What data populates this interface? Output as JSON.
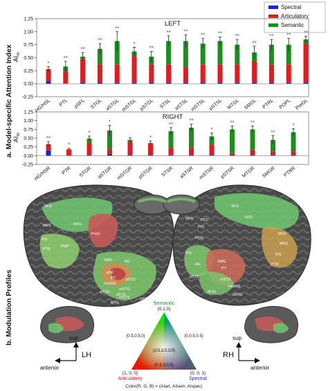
{
  "panel_a_label": "a. Model-specific Attention Index",
  "panel_b_label": "b. Modulation Profiles",
  "legend": [
    {
      "name": "Spectral",
      "color": "#1f1fd6"
    },
    {
      "name": "Articulatory",
      "color": "#e41a1c"
    },
    {
      "name": "Semantic",
      "color": "#1e8f1e"
    }
  ],
  "chart_data": [
    {
      "type": "bar",
      "title": "LEFT",
      "ylabel": "AI",
      "ylabel_sub": "m",
      "ylim": [
        -0.25,
        1.25
      ],
      "yticks": [
        -0.25,
        0.0,
        0.25,
        0.5,
        0.75,
        1.0,
        1.25
      ],
      "categories": [
        "HG/HSL",
        "PTL",
        "pSFL",
        "STGL",
        "aSTGL",
        "mSTGL",
        "pSTGL",
        "STSL",
        "aSTSL",
        "mSTSL",
        "pSTSL",
        "MTGL",
        "SMGL",
        "PTRL",
        "POPL",
        "PreGL"
      ],
      "series": [
        {
          "name": "Spectral",
          "values": [
            0.05,
            0.0,
            0.02,
            0.02,
            0.02,
            0.02,
            0.02,
            0.02,
            0.02,
            0.02,
            0.02,
            0.02,
            0.02,
            0.02,
            0.02,
            0.02
          ]
        },
        {
          "name": "Articulatory",
          "values": [
            0.23,
            0.23,
            0.45,
            0.35,
            0.35,
            0.5,
            0.35,
            0.35,
            0.3,
            0.35,
            0.35,
            0.35,
            0.4,
            0.35,
            0.35,
            0.75
          ]
        },
        {
          "name": "Semantic",
          "values": [
            0.0,
            0.1,
            0.05,
            0.3,
            0.45,
            0.1,
            0.15,
            0.45,
            0.5,
            0.4,
            0.45,
            0.38,
            0.18,
            0.38,
            0.38,
            0.08
          ]
        }
      ],
      "error": [
        0.05,
        0.1,
        0.08,
        0.1,
        0.18,
        0.08,
        0.1,
        0.1,
        0.12,
        0.1,
        0.08,
        0.1,
        0.12,
        0.1,
        0.12,
        0.06
      ],
      "significance": [
        "*",
        "**",
        "**",
        "**",
        "**",
        "*",
        "**",
        "**",
        "**",
        "**",
        "**",
        "**",
        "**",
        "**",
        "**",
        "**"
      ]
    },
    {
      "type": "bar",
      "title": "RIGHT",
      "ylabel": "AI",
      "ylabel_sub": "m",
      "ylim": [
        -0.25,
        1.25
      ],
      "yticks": [
        -0.25,
        0.0,
        0.25,
        0.5,
        0.75,
        1.0,
        1.25
      ],
      "categories": [
        "HG/HSR",
        "PTR",
        "STGR",
        "aSTGR",
        "mSTGR",
        "pSTGR",
        "STSR",
        "aSTSR",
        "mSTSR",
        "pSTSR",
        "MTGR",
        "SMGR",
        "PTRR"
      ],
      "series": [
        {
          "name": "Spectral",
          "values": [
            0.15,
            0.0,
            0.02,
            0.05,
            0.02,
            0.02,
            0.02,
            0.02,
            0.02,
            0.02,
            0.02,
            0.02,
            0.02
          ]
        },
        {
          "name": "Articulatory",
          "values": [
            0.18,
            0.18,
            0.35,
            0.15,
            0.38,
            0.32,
            0.2,
            0.2,
            0.3,
            0.05,
            0.15,
            0.1,
            0.1
          ]
        },
        {
          "name": "Semantic",
          "values": [
            0.0,
            0.0,
            0.12,
            0.52,
            0.05,
            0.02,
            0.48,
            0.58,
            0.23,
            0.68,
            0.58,
            0.33,
            0.55
          ]
        }
      ],
      "error": [
        0.07,
        0.03,
        0.07,
        0.15,
        0.06,
        0.06,
        0.1,
        0.1,
        0.1,
        0.1,
        0.1,
        0.12,
        0.1
      ],
      "significance": [
        "**",
        "*",
        "*",
        "*",
        "",
        "*",
        "**",
        "**",
        "*",
        "**",
        "**",
        "**",
        "*"
      ]
    }
  ],
  "brain": {
    "left_labels": [
      "SFG",
      "MFS",
      "MFG",
      "PreG",
      "IFS",
      "PTR",
      "POP",
      "SMG",
      "AG",
      "pSF",
      "PT",
      "HG/HS",
      "aSTG",
      "mSTG",
      "pSTS",
      "aSTS",
      "mSTS",
      "MTG",
      "mOTS"
    ],
    "right_labels": [
      "SFG",
      "SFS",
      "SPS",
      "PCC",
      "PrC",
      "POS",
      "IPS",
      "AG",
      "pSTS",
      "SMG",
      "PT",
      "mSTS",
      "HG/HS",
      "MTG",
      "aSTG",
      "MFS",
      "MFG",
      "IFS",
      "PTR"
    ],
    "left_orientation": {
      "up": "sup",
      "side": "anterior",
      "hemisphere": "LH"
    },
    "right_orientation": {
      "up": "sup",
      "side": "anterior",
      "hemisphere": "RH"
    }
  },
  "color_triangle": {
    "top_label": "Semantic",
    "top_value": "(0,1,0)",
    "left_label": "Articulatory",
    "left_value": "(1, 0, 0)",
    "right_label": "Spectral",
    "right_value": "(0, 0, 1)",
    "mid_left": "(0.5,0.5,0)",
    "mid_right": "(0,0.5,0.5)",
    "mid_bottom": "(0.5,0,0.5)",
    "center": "(1/3,1/3,1/3)",
    "formula": "Color(R, G, B) = (AIart, AIsem, AIspec)"
  }
}
